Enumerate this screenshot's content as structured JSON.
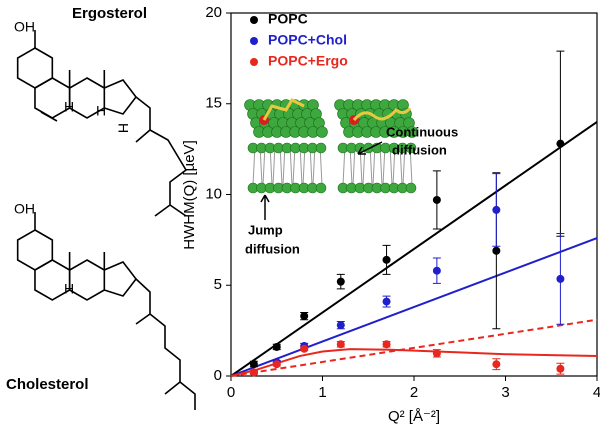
{
  "chart_data": {
    "type": "scatter",
    "xlabel": "Q² [Å⁻²]",
    "ylabel": "HWHM(Q) [µeV]",
    "xlim": [
      0,
      4
    ],
    "xticks": [
      0,
      1,
      2,
      3,
      4
    ],
    "ylim": [
      0,
      20
    ],
    "yticks": [
      0,
      5,
      10,
      15,
      20
    ],
    "legend": "upper left",
    "x": [
      0.25,
      0.5,
      0.8,
      1.2,
      1.7,
      2.25,
      2.9,
      3.6
    ],
    "series": [
      {
        "name": "POPC",
        "color": "#000000",
        "values": [
          0.66,
          1.6,
          3.3,
          5.2,
          6.4,
          9.7,
          6.9,
          12.8
        ],
        "errors": [
          0.15,
          0.15,
          0.2,
          0.4,
          0.8,
          1.6,
          4.3,
          5.1
        ]
      },
      {
        "name": "POPC+Chol",
        "color": "#1f1fcc",
        "values": [
          0.2,
          0.75,
          1.65,
          2.8,
          4.1,
          5.8,
          9.15,
          5.35
        ],
        "errors": [
          0.1,
          0.1,
          0.15,
          0.2,
          0.3,
          0.7,
          2.0,
          2.5
        ]
      },
      {
        "name": "POPC+Ergo",
        "color": "#e8281e",
        "values": [
          0.2,
          0.65,
          1.5,
          1.75,
          1.75,
          1.25,
          0.65,
          0.4
        ],
        "errors": [
          0.1,
          0.1,
          0.1,
          0.15,
          0.15,
          0.2,
          0.3,
          0.3
        ]
      }
    ],
    "fits": [
      {
        "color": "#000000",
        "style": "solid",
        "x": [
          0,
          4
        ],
        "values": [
          0,
          14
        ]
      },
      {
        "color": "#1f1fcc",
        "style": "solid",
        "x": [
          0,
          4
        ],
        "values": [
          0,
          7.6
        ]
      },
      {
        "color": "#e8281e",
        "style": "dashed",
        "x": [
          0,
          4
        ],
        "values": [
          0,
          3.1
        ]
      },
      {
        "color": "#e8281e",
        "style": "solid",
        "x": [
          0,
          0.25,
          0.5,
          0.75,
          1,
          1.3,
          1.7,
          2,
          2.5,
          3,
          3.5,
          4
        ],
        "values": [
          0,
          0.3,
          0.7,
          1.1,
          1.35,
          1.48,
          1.45,
          1.4,
          1.3,
          1.2,
          1.15,
          1.1
        ]
      }
    ],
    "annotations": [
      [
        "Continuous",
        "diffusion"
      ],
      [
        "Jump",
        "diffusion"
      ]
    ]
  },
  "structures": [
    {
      "name": "Ergosterol",
      "labels": [
        "OH",
        "H",
        "H",
        "H"
      ]
    },
    {
      "name": "Cholesterol",
      "labels": [
        "OH",
        "H"
      ]
    }
  ]
}
